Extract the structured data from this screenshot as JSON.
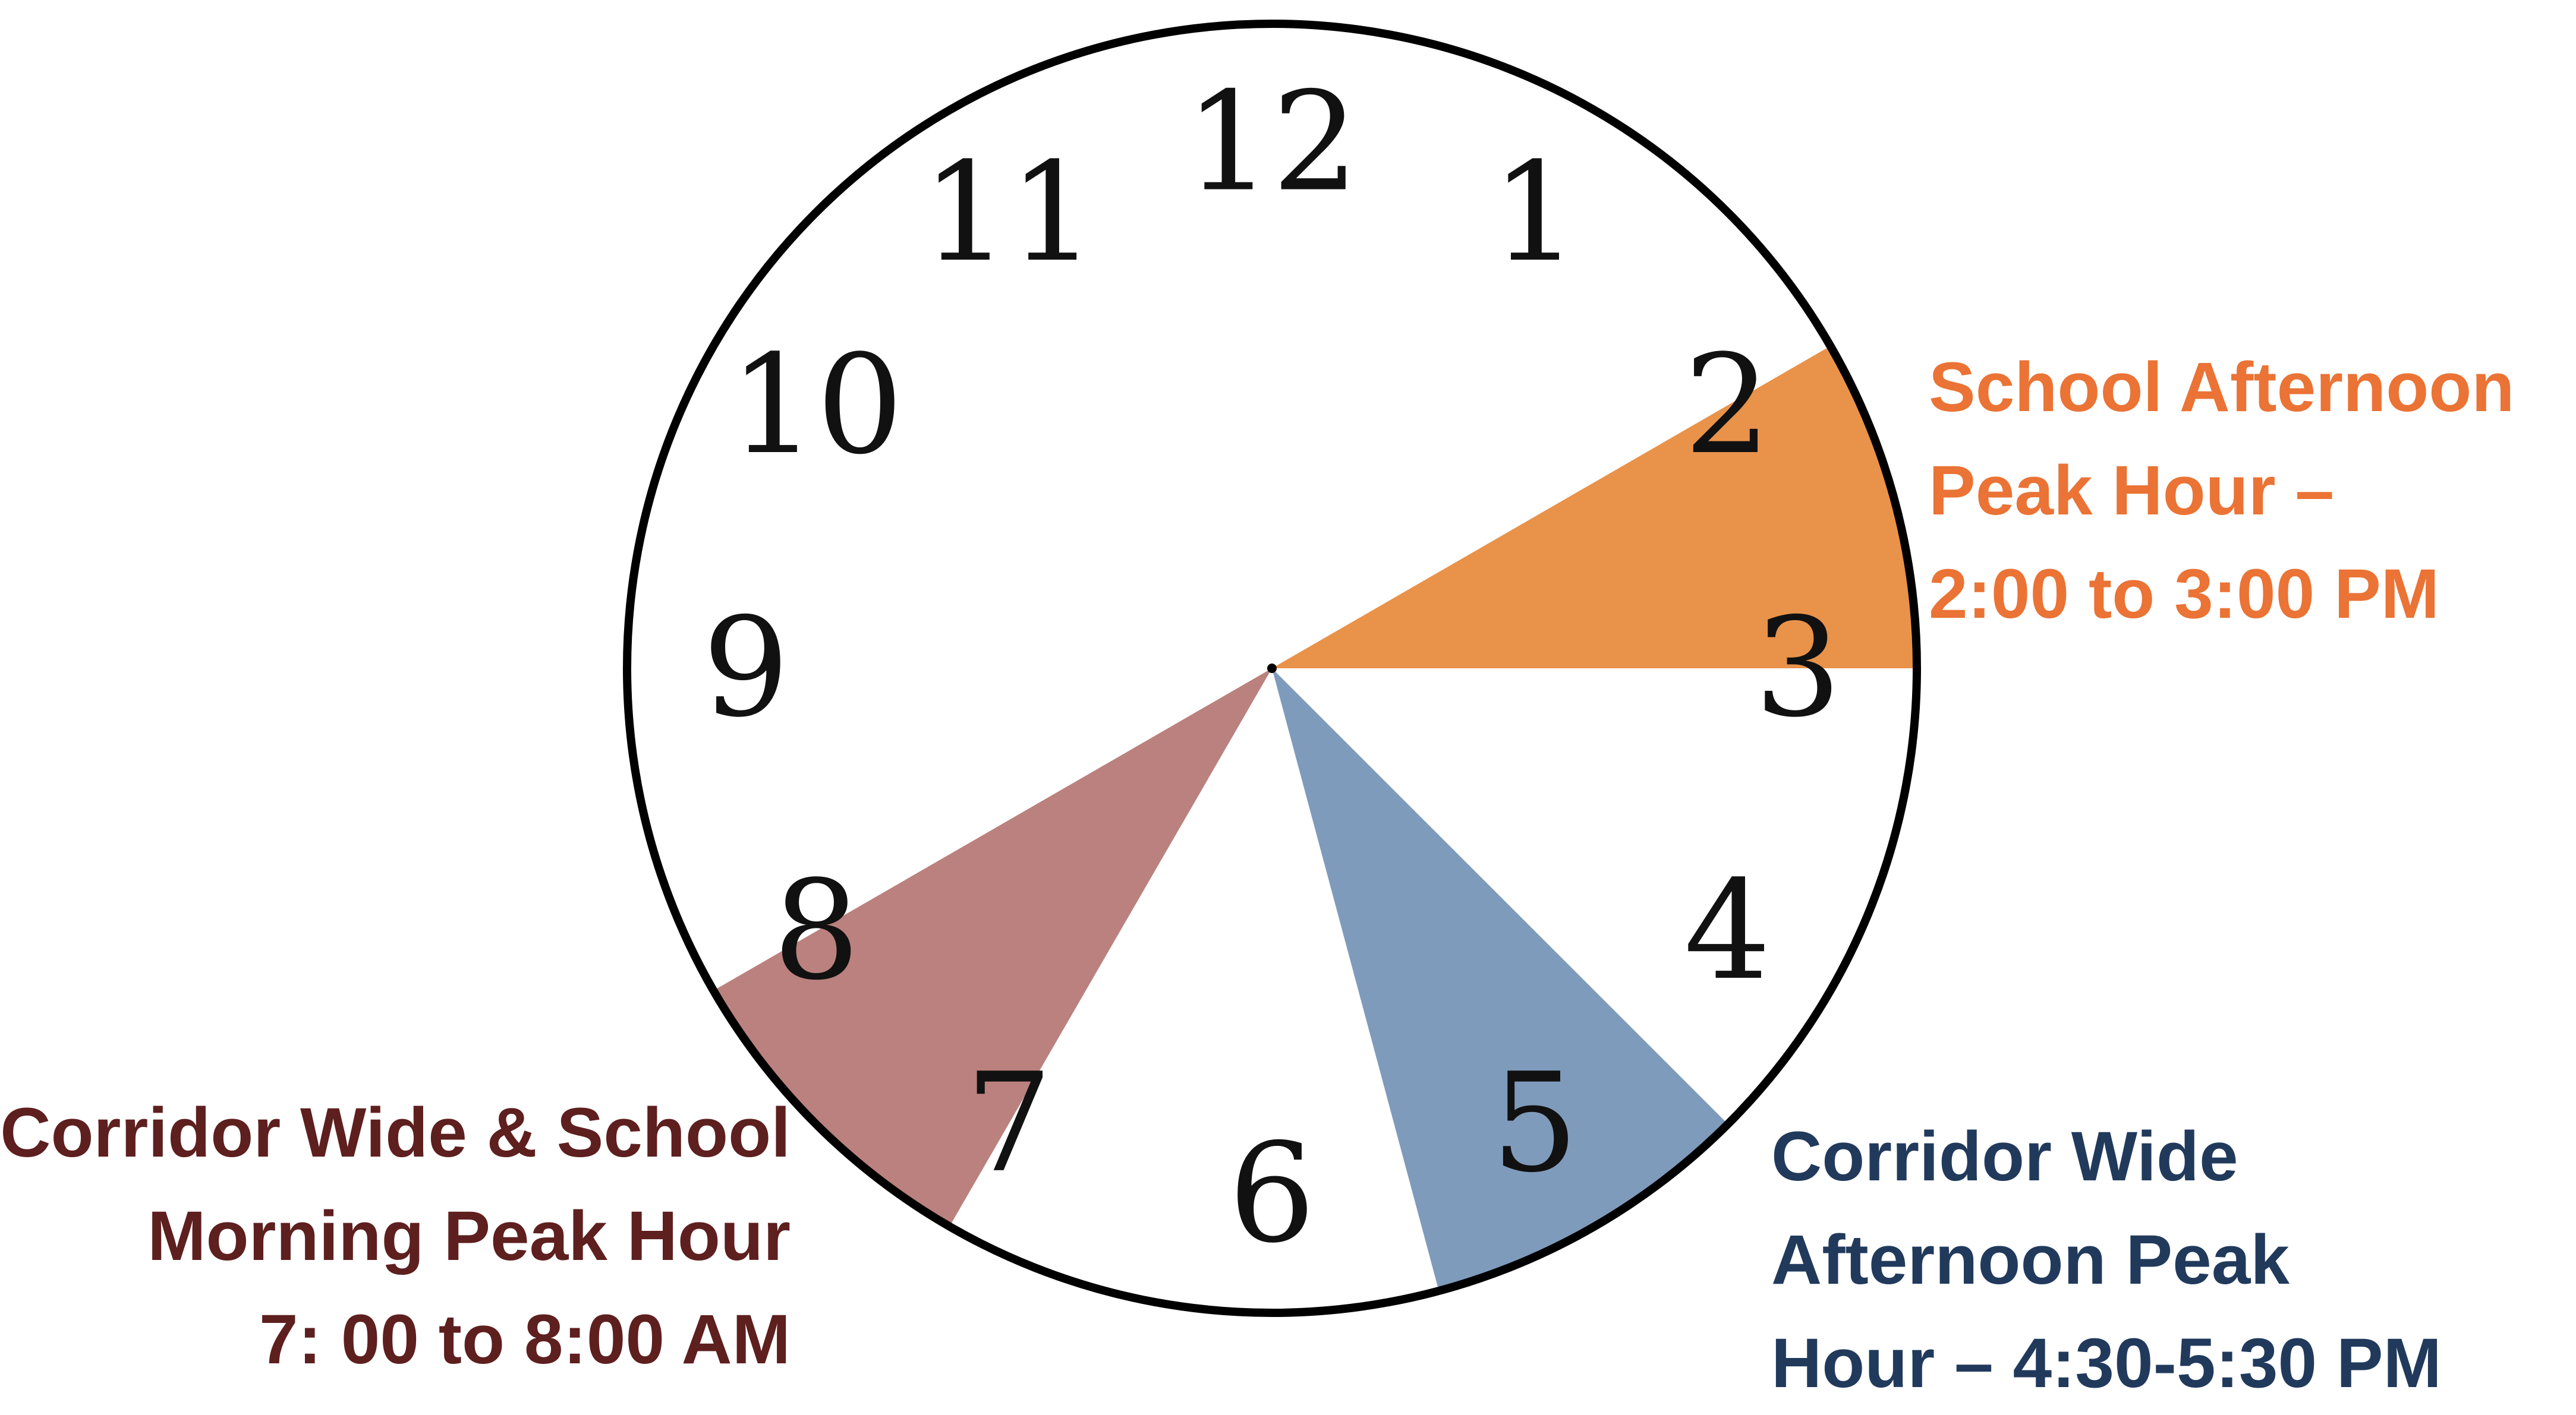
{
  "diagram": {
    "clock_numerals": [
      "12",
      "1",
      "2",
      "3",
      "4",
      "5",
      "6",
      "7",
      "8",
      "9",
      "10",
      "11"
    ],
    "peak_periods": [
      {
        "id": "school-afternoon",
        "start_hour": 2.0,
        "end_hour": 3.0,
        "color": "#e9924a",
        "text_color": "#ea7335",
        "label_lines": [
          "School Afternoon",
          "Peak Hour –",
          "2:00 to 3:00 PM"
        ]
      },
      {
        "id": "corridor-afternoon",
        "start_hour": 4.5,
        "end_hour": 5.5,
        "color": "#7f9bbb",
        "text_color": "#213a5c",
        "label_lines": [
          "Corridor Wide",
          "Afternoon Peak",
          "Hour – 4:30-5:30 PM"
        ]
      },
      {
        "id": "morning",
        "start_hour": 7.0,
        "end_hour": 8.0,
        "color": "#bb817e",
        "text_color": "#5e1f1f",
        "label_lines": [
          "Corridor Wide & School",
          "Morning Peak Hour",
          "7: 00 to 8:00 AM"
        ]
      }
    ]
  }
}
